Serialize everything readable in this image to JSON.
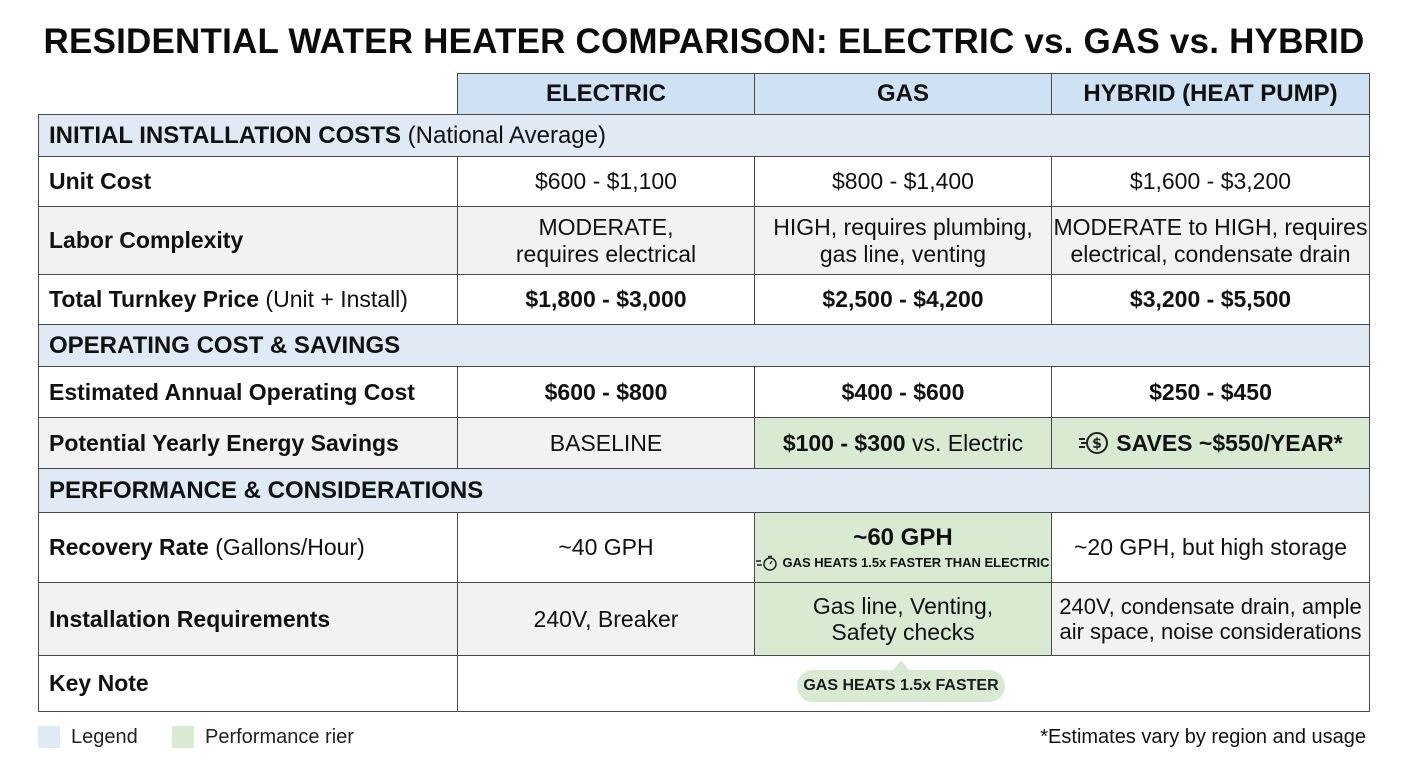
{
  "title": "RESIDENTIAL WATER HEATER COMPARISON: ELECTRIC vs. GAS vs. HYBRID",
  "columns": [
    "ELECTRIC",
    "GAS",
    "HYBRID (HEAT PUMP)"
  ],
  "sections": {
    "installation": {
      "title": "INITIAL INSTALLATION COSTS",
      "suffix": " (National Average)"
    },
    "operating": {
      "title": "OPERATING COST & SAVINGS"
    },
    "performance": {
      "title": "PERFORMANCE & CONSIDERATIONS"
    }
  },
  "rows": {
    "unit_cost": {
      "label": "Unit Cost",
      "electric": "$600 - $1,100",
      "gas": "$800 - $1,400",
      "hybrid": "$1,600 - $3,200"
    },
    "labor": {
      "label": "Labor Complexity",
      "electric": [
        "MODERATE,",
        "requires electrical"
      ],
      "gas": [
        "HIGH, requires plumbing,",
        "gas line, venting"
      ],
      "hybrid": [
        "MODERATE to HIGH, requires",
        "electrical, condensate drain"
      ]
    },
    "turnkey": {
      "label": "Total Turnkey Price",
      "label_suffix": " (Unit + Install)",
      "electric": "$1,800 - $3,000",
      "gas": "$2,500 - $4,200",
      "hybrid": "$3,200 - $5,500"
    },
    "annual_cost": {
      "label": "Estimated Annual Operating Cost",
      "electric": "$600 - $800",
      "gas": "$400 - $600",
      "hybrid": "$250 - $450"
    },
    "savings": {
      "label": "Potential Yearly Energy Savings",
      "electric": "BASELINE",
      "gas_bold": "$100 - $300",
      "gas_rest": " vs. Electric",
      "hybrid": "SAVES ~$550/YEAR*"
    },
    "recovery": {
      "label": "Recovery Rate",
      "label_suffix": " (Gallons/Hour)",
      "electric": "~40 GPH",
      "gas": "~60 GPH",
      "gas_note": "GAS HEATS 1.5x FASTER THAN ELECTRIC",
      "hybrid": "~20 GPH, but high storage"
    },
    "requirements": {
      "label": "Installation Requirements",
      "electric": "240V, Breaker",
      "gas": [
        "Gas line, Venting,",
        "Safety checks"
      ],
      "hybrid": [
        "240V, condensate drain, ample",
        "air space, noise considerations"
      ]
    },
    "key_note": {
      "label": "Key Note",
      "badge": "GAS HEATS 1.5x FASTER"
    }
  },
  "legend": {
    "item1": "Legend",
    "item2": "Performance rier"
  },
  "footnote": "*Estimates vary by region and usage",
  "colors": {
    "header": "#cfe2f3",
    "section": "#dfeaf5",
    "highlight": "#d9ead3",
    "stripe": "#f2f2f2"
  },
  "icons": {
    "savings": "dollar-coin-icon",
    "speed": "stopwatch-icon"
  }
}
